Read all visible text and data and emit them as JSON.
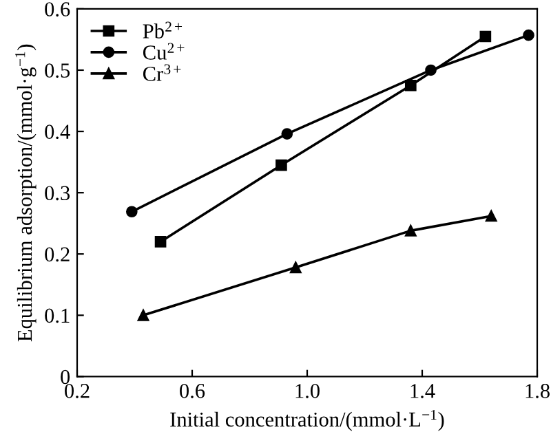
{
  "chart_data": {
    "type": "line",
    "xlabel": "Initial concentration/(mmol·L$^{−1}$)",
    "ylabel": "Equilibrium adsorption/(mmol·g$^{−1}$)",
    "xlim": [
      0.2,
      1.8
    ],
    "xticks": [
      0.2,
      0.6,
      {
        "value": 1.0,
        "label": "1.0"
      },
      1.4,
      1.8
    ],
    "ylim": [
      0,
      0.6
    ],
    "yticks": [
      0,
      0.1,
      0.2,
      0.3,
      0.4,
      0.5,
      0.6
    ],
    "grid": false,
    "legend": "top left",
    "line_style": "solid",
    "series": [
      {
        "name": "Pb$^{2+}$",
        "color": "#000000",
        "marker": "square",
        "x": [
          0.49,
          0.91,
          1.36,
          1.62
        ],
        "values": [
          0.22,
          0.345,
          0.475,
          0.555
        ]
      },
      {
        "name": "Cu$^{2+}$",
        "color": "#000000",
        "marker": "circle",
        "x": [
          0.39,
          0.93,
          1.43,
          1.77
        ],
        "values": [
          0.269,
          0.396,
          0.5,
          0.557
        ]
      },
      {
        "name": "Cr$^{3+}$",
        "color": "#000000",
        "marker": "triangle",
        "x": [
          0.43,
          0.96,
          1.36,
          1.64
        ],
        "values": [
          0.1,
          0.178,
          0.238,
          0.262
        ]
      }
    ]
  }
}
